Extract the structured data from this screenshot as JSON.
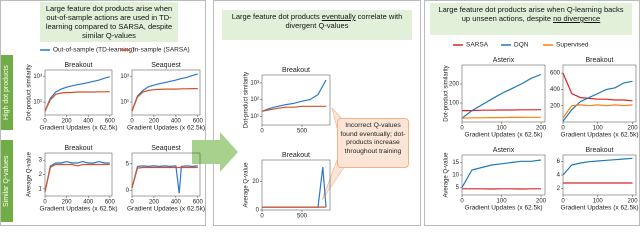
{
  "headers": [
    {
      "before": "Large feature dot products arise when out-of-sample actions are used in TD-learning compared to SARSA, despite similar Q-values"
    },
    {
      "before": "Large feature dot products",
      "underlined": "eventually",
      "after": "correlate with divergent Q-values"
    },
    {
      "before": "Large feature dot products arise when Q-learning backs up unseen actions, despite",
      "underlined": "no divergence"
    }
  ],
  "row_labels": [
    "High dot products",
    "Similar Q-values"
  ],
  "callout": "Incorrect Q-values found eventually; dot-products increase throughout training",
  "chart_data": [
    {
      "type": "line",
      "title": "Breakout",
      "ylabel": "Dot-product similarity",
      "xlabel": "Gradient Updates (x 62.5k)",
      "ylog": true,
      "x": [
        0,
        50,
        100,
        150,
        200,
        250,
        300,
        350,
        400,
        450,
        500,
        550,
        600
      ],
      "series": [
        {
          "name": "Out-of-sample (TD-learning)",
          "color": "#2a78c6",
          "values": [
            2,
            20,
            60,
            100,
            140,
            180,
            220,
            260,
            320,
            400,
            500,
            700,
            900
          ]
        },
        {
          "name": "In-sample (SARSA)",
          "color": "#d4502a",
          "values": [
            2,
            15,
            40,
            50,
            55,
            55,
            60,
            60,
            60,
            60,
            62,
            62,
            63
          ]
        }
      ],
      "xlim": [
        0,
        620
      ],
      "ylim": [
        1,
        3000
      ],
      "xticks": [
        0,
        200,
        400,
        600
      ],
      "yticks": [
        {
          "value": 10,
          "label": "10¹"
        },
        {
          "value": 1000,
          "label": "10³"
        }
      ]
    },
    {
      "type": "line",
      "title": "Seaquest",
      "xlabel": "Gradient Updates (x 62.5k)",
      "ylog": true,
      "x": [
        0,
        50,
        100,
        150,
        200,
        250,
        300,
        350,
        400,
        450,
        500,
        550,
        600
      ],
      "series": [
        {
          "color": "#2a78c6",
          "values": [
            2,
            30,
            80,
            150,
            200,
            260,
            320,
            400,
            500,
            650,
            800,
            1100,
            1500
          ]
        },
        {
          "color": "#d4502a",
          "values": [
            2,
            25,
            60,
            80,
            90,
            95,
            100,
            100,
            100,
            105,
            105,
            110,
            110
          ]
        }
      ],
      "xlim": [
        0,
        620
      ],
      "ylim": [
        1,
        3000
      ],
      "xticks": [
        0,
        200,
        400,
        600
      ],
      "yticks": [
        {
          "value": 10,
          "label": "10¹"
        },
        {
          "value": 1000,
          "label": "10³"
        }
      ]
    },
    {
      "type": "line",
      "title": "Breakout",
      "ylabel": "Average Q-value",
      "xlabel": "Gradient Updates (x 62.5k)",
      "x": [
        0,
        50,
        100,
        150,
        200,
        250,
        300,
        350,
        400,
        450,
        500,
        550,
        600
      ],
      "series": [
        {
          "color": "#2a78c6",
          "values": [
            0.8,
            2.6,
            2.8,
            2.8,
            2.9,
            2.8,
            2.8,
            2.9,
            2.8,
            2.8,
            2.9,
            2.8,
            2.8
          ]
        },
        {
          "color": "#d4502a",
          "values": [
            0.8,
            2.5,
            2.7,
            2.7,
            2.7,
            2.7,
            2.6,
            2.7,
            2.7,
            2.7,
            2.7,
            2.7,
            2.7
          ]
        }
      ],
      "xlim": [
        0,
        620
      ],
      "ylim": [
        0.5,
        3.5
      ],
      "xticks": [
        0,
        200,
        400,
        600
      ],
      "yticks": [
        1,
        2,
        3
      ]
    },
    {
      "type": "line",
      "title": "Seaquest",
      "xlabel": "Gradient Updates (x 62.5k)",
      "x": [
        0,
        50,
        100,
        150,
        200,
        250,
        300,
        350,
        400,
        430,
        450,
        500,
        550,
        600
      ],
      "series": [
        {
          "color": "#2a78c6",
          "values": [
            0.5,
            4.5,
            4.6,
            4.5,
            4.6,
            4.5,
            4.6,
            4.5,
            4.6,
            -0.5,
            4.5,
            4.6,
            4.5,
            4.6
          ]
        },
        {
          "color": "#d4502a",
          "values": [
            0.5,
            4.2,
            4.3,
            4.3,
            4.3,
            4.3,
            4.3,
            4.3,
            4.3,
            4.3,
            4.3,
            4.3,
            4.3,
            4.3
          ]
        }
      ],
      "xlim": [
        0,
        620
      ],
      "ylim": [
        -1,
        7
      ],
      "xticks": [
        0,
        200,
        400,
        600
      ],
      "yticks": [
        0,
        5
      ]
    },
    {
      "type": "line",
      "title": "Breakout",
      "ylabel": "Dot-product similarity",
      "ylog": true,
      "x": [
        0,
        100,
        200,
        300,
        400,
        500,
        600,
        700,
        800
      ],
      "series": [
        {
          "color": "#2a78c6",
          "values": [
            20,
            30,
            40,
            50,
            60,
            80,
            100,
            200,
            1500
          ]
        },
        {
          "color": "#d4502a",
          "values": [
            20,
            25,
            30,
            35,
            35,
            40,
            40,
            40,
            40
          ]
        }
      ],
      "xlim": [
        0,
        850
      ],
      "ylim": [
        3,
        3000
      ],
      "xticks": [
        0,
        500
      ],
      "yticks": [
        {
          "value": 10,
          "label": "10¹"
        },
        {
          "value": 100,
          "label": "10²"
        },
        {
          "value": 1000,
          "label": "10³"
        }
      ]
    },
    {
      "type": "line",
      "title": "Breakout",
      "ylabel": "Average Q-value",
      "x": [
        0,
        100,
        200,
        300,
        400,
        500,
        600,
        700,
        760,
        800
      ],
      "series": [
        {
          "color": "#2a78c6",
          "values": [
            2,
            2,
            2,
            2,
            2,
            2,
            2,
            2,
            30,
            2
          ]
        },
        {
          "color": "#d4502a",
          "values": [
            2,
            2,
            2,
            2,
            2,
            2,
            2,
            2,
            2,
            2
          ]
        }
      ],
      "xlim": [
        0,
        850
      ],
      "ylim": [
        0,
        35
      ],
      "xticks": [
        0,
        500
      ],
      "yticks": [
        0,
        20
      ]
    },
    {
      "type": "line",
      "title": "Asterix",
      "ylabel": "Dot-product similarity",
      "xlabel": "Gradient Updates (x 62.5k)",
      "x": [
        0,
        25,
        50,
        75,
        100,
        125,
        150,
        175,
        200
      ],
      "series": [
        {
          "name": "SARSA",
          "color": "#d62728",
          "values": [
            60,
            60,
            62,
            62,
            63,
            63,
            64,
            64,
            65
          ]
        },
        {
          "name": "DQN",
          "color": "#1f77b4",
          "values": [
            20,
            60,
            90,
            120,
            150,
            175,
            200,
            230,
            250
          ]
        },
        {
          "name": "Supervised",
          "color": "#ff7f0e",
          "values": [
            20,
            22,
            22,
            23,
            23,
            24,
            24,
            25,
            25
          ]
        }
      ],
      "xlim": [
        0,
        210
      ],
      "ylim": [
        0,
        300
      ],
      "xticks": [
        0,
        100,
        200
      ],
      "yticks": [
        100,
        200
      ]
    },
    {
      "type": "line",
      "title": "Breakout",
      "xlabel": "Gradient Updates (x 62.5k)",
      "x": [
        0,
        25,
        50,
        75,
        100,
        125,
        150,
        175,
        200
      ],
      "series": [
        {
          "color": "#d62728",
          "values": [
            600,
            350,
            300,
            290,
            280,
            280,
            270,
            270,
            260
          ]
        },
        {
          "color": "#1f77b4",
          "values": [
            10,
            150,
            250,
            300,
            350,
            400,
            420,
            480,
            500
          ]
        },
        {
          "color": "#ff7f0e",
          "values": [
            50,
            200,
            210,
            200,
            210,
            200,
            210,
            200,
            210
          ]
        }
      ],
      "xlim": [
        0,
        210
      ],
      "ylim": [
        0,
        700
      ],
      "xticks": [
        0,
        100,
        200
      ],
      "yticks": [
        200,
        400,
        600
      ]
    },
    {
      "type": "line",
      "title": "Asterix",
      "ylabel": "Average Q-value",
      "xlabel": "Gradient Updates (x 62.5k)",
      "x": [
        0,
        25,
        50,
        75,
        100,
        125,
        150,
        175,
        200
      ],
      "series": [
        {
          "color": "#1f77b4",
          "values": [
            5,
            12,
            13,
            14,
            14.5,
            15,
            15.5,
            15.5,
            16
          ]
        },
        {
          "color": "#d62728",
          "values": [
            4.5,
            4.5,
            4.5,
            4.4,
            4.5,
            4.5,
            4.4,
            4.5,
            4.5
          ]
        }
      ],
      "xlim": [
        0,
        210
      ],
      "ylim": [
        2,
        18
      ],
      "xticks": [
        0,
        100,
        200
      ],
      "yticks": [
        5,
        10,
        15
      ]
    },
    {
      "type": "line",
      "title": "Breakout",
      "xlabel": "Gradient Updates (x 62.5k)",
      "x": [
        0,
        25,
        50,
        75,
        100,
        125,
        150,
        175,
        200
      ],
      "series": [
        {
          "color": "#1f77b4",
          "values": [
            4,
            5.5,
            5.8,
            6,
            6.1,
            6.2,
            6.3,
            6.4,
            6.5
          ]
        },
        {
          "color": "#d62728",
          "values": [
            2.8,
            2.8,
            2.8,
            2.8,
            2.8,
            2.8,
            2.8,
            2.8,
            2.8
          ]
        }
      ],
      "xlim": [
        0,
        210
      ],
      "ylim": [
        1,
        7
      ],
      "xticks": [
        0,
        100,
        200
      ],
      "yticks": [
        2,
        4,
        6
      ]
    }
  ]
}
